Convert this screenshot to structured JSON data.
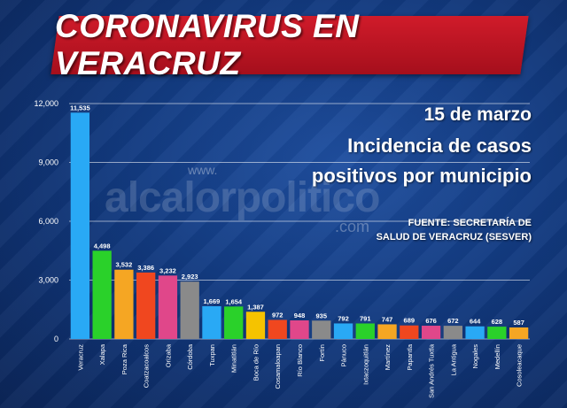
{
  "header": {
    "title": "CORONAVIRUS EN VERACRUZ"
  },
  "info": {
    "date": "15 de marzo",
    "subtitle_line1": "Incidencia de casos",
    "subtitle_line2": "positivos por municipio",
    "source_line1": "FUENTE: SECRETARÍA DE",
    "source_line2": "SALUD DE VERACRUZ (SESVER)"
  },
  "watermark": {
    "prefix": "www.",
    "main": "alcalorpolitico",
    "suffix": ".com"
  },
  "chart_data": {
    "type": "bar",
    "title": "",
    "xlabel": "",
    "ylabel": "",
    "ylim": [
      0,
      12000
    ],
    "yticks": [
      0,
      3000,
      6000,
      9000,
      12000
    ],
    "ytick_labels": [
      "0",
      "3,000",
      "6,000",
      "9,000",
      "12,000"
    ],
    "grid": true,
    "categories": [
      "Veracruz",
      "Xalapa",
      "Poza Rica",
      "Coatzacoalcos",
      "Orizaba",
      "Córdoba",
      "Tuxpan",
      "Minatitlán",
      "Boca de Río",
      "Cosamaloapan",
      "Río Blanco",
      "Fortín",
      "Pánuco",
      "Ixtaczoquitlán",
      "Martínez",
      "Papantla",
      "San Andrés Tuxtla",
      "La Antigua",
      "Nogales",
      "Medellín",
      "Cosoleacaque"
    ],
    "values": [
      11535,
      4498,
      3532,
      3386,
      3232,
      2923,
      1669,
      1654,
      1387,
      972,
      948,
      935,
      792,
      791,
      747,
      689,
      676,
      672,
      644,
      628,
      587
    ],
    "value_labels": [
      "11,535",
      "4,498",
      "3,532",
      "3,386",
      "3,232",
      "2,923",
      "1,669",
      "1,654",
      "1,387",
      "972",
      "948",
      "935",
      "792",
      "791",
      "747",
      "689",
      "676",
      "672",
      "644",
      "628",
      "587"
    ],
    "colors": [
      "#29a9f5",
      "#2ad12a",
      "#f5a623",
      "#f0471f",
      "#e0478a",
      "#8a8a8a",
      "#29a9f5",
      "#2ad12a",
      "#f5c300",
      "#f0471f",
      "#e0478a",
      "#8a8a8a",
      "#29a9f5",
      "#2ad12a",
      "#f5a623",
      "#f0471f",
      "#e0478a",
      "#8a8a8a",
      "#29a9f5",
      "#2ad12a",
      "#f5a623"
    ]
  }
}
